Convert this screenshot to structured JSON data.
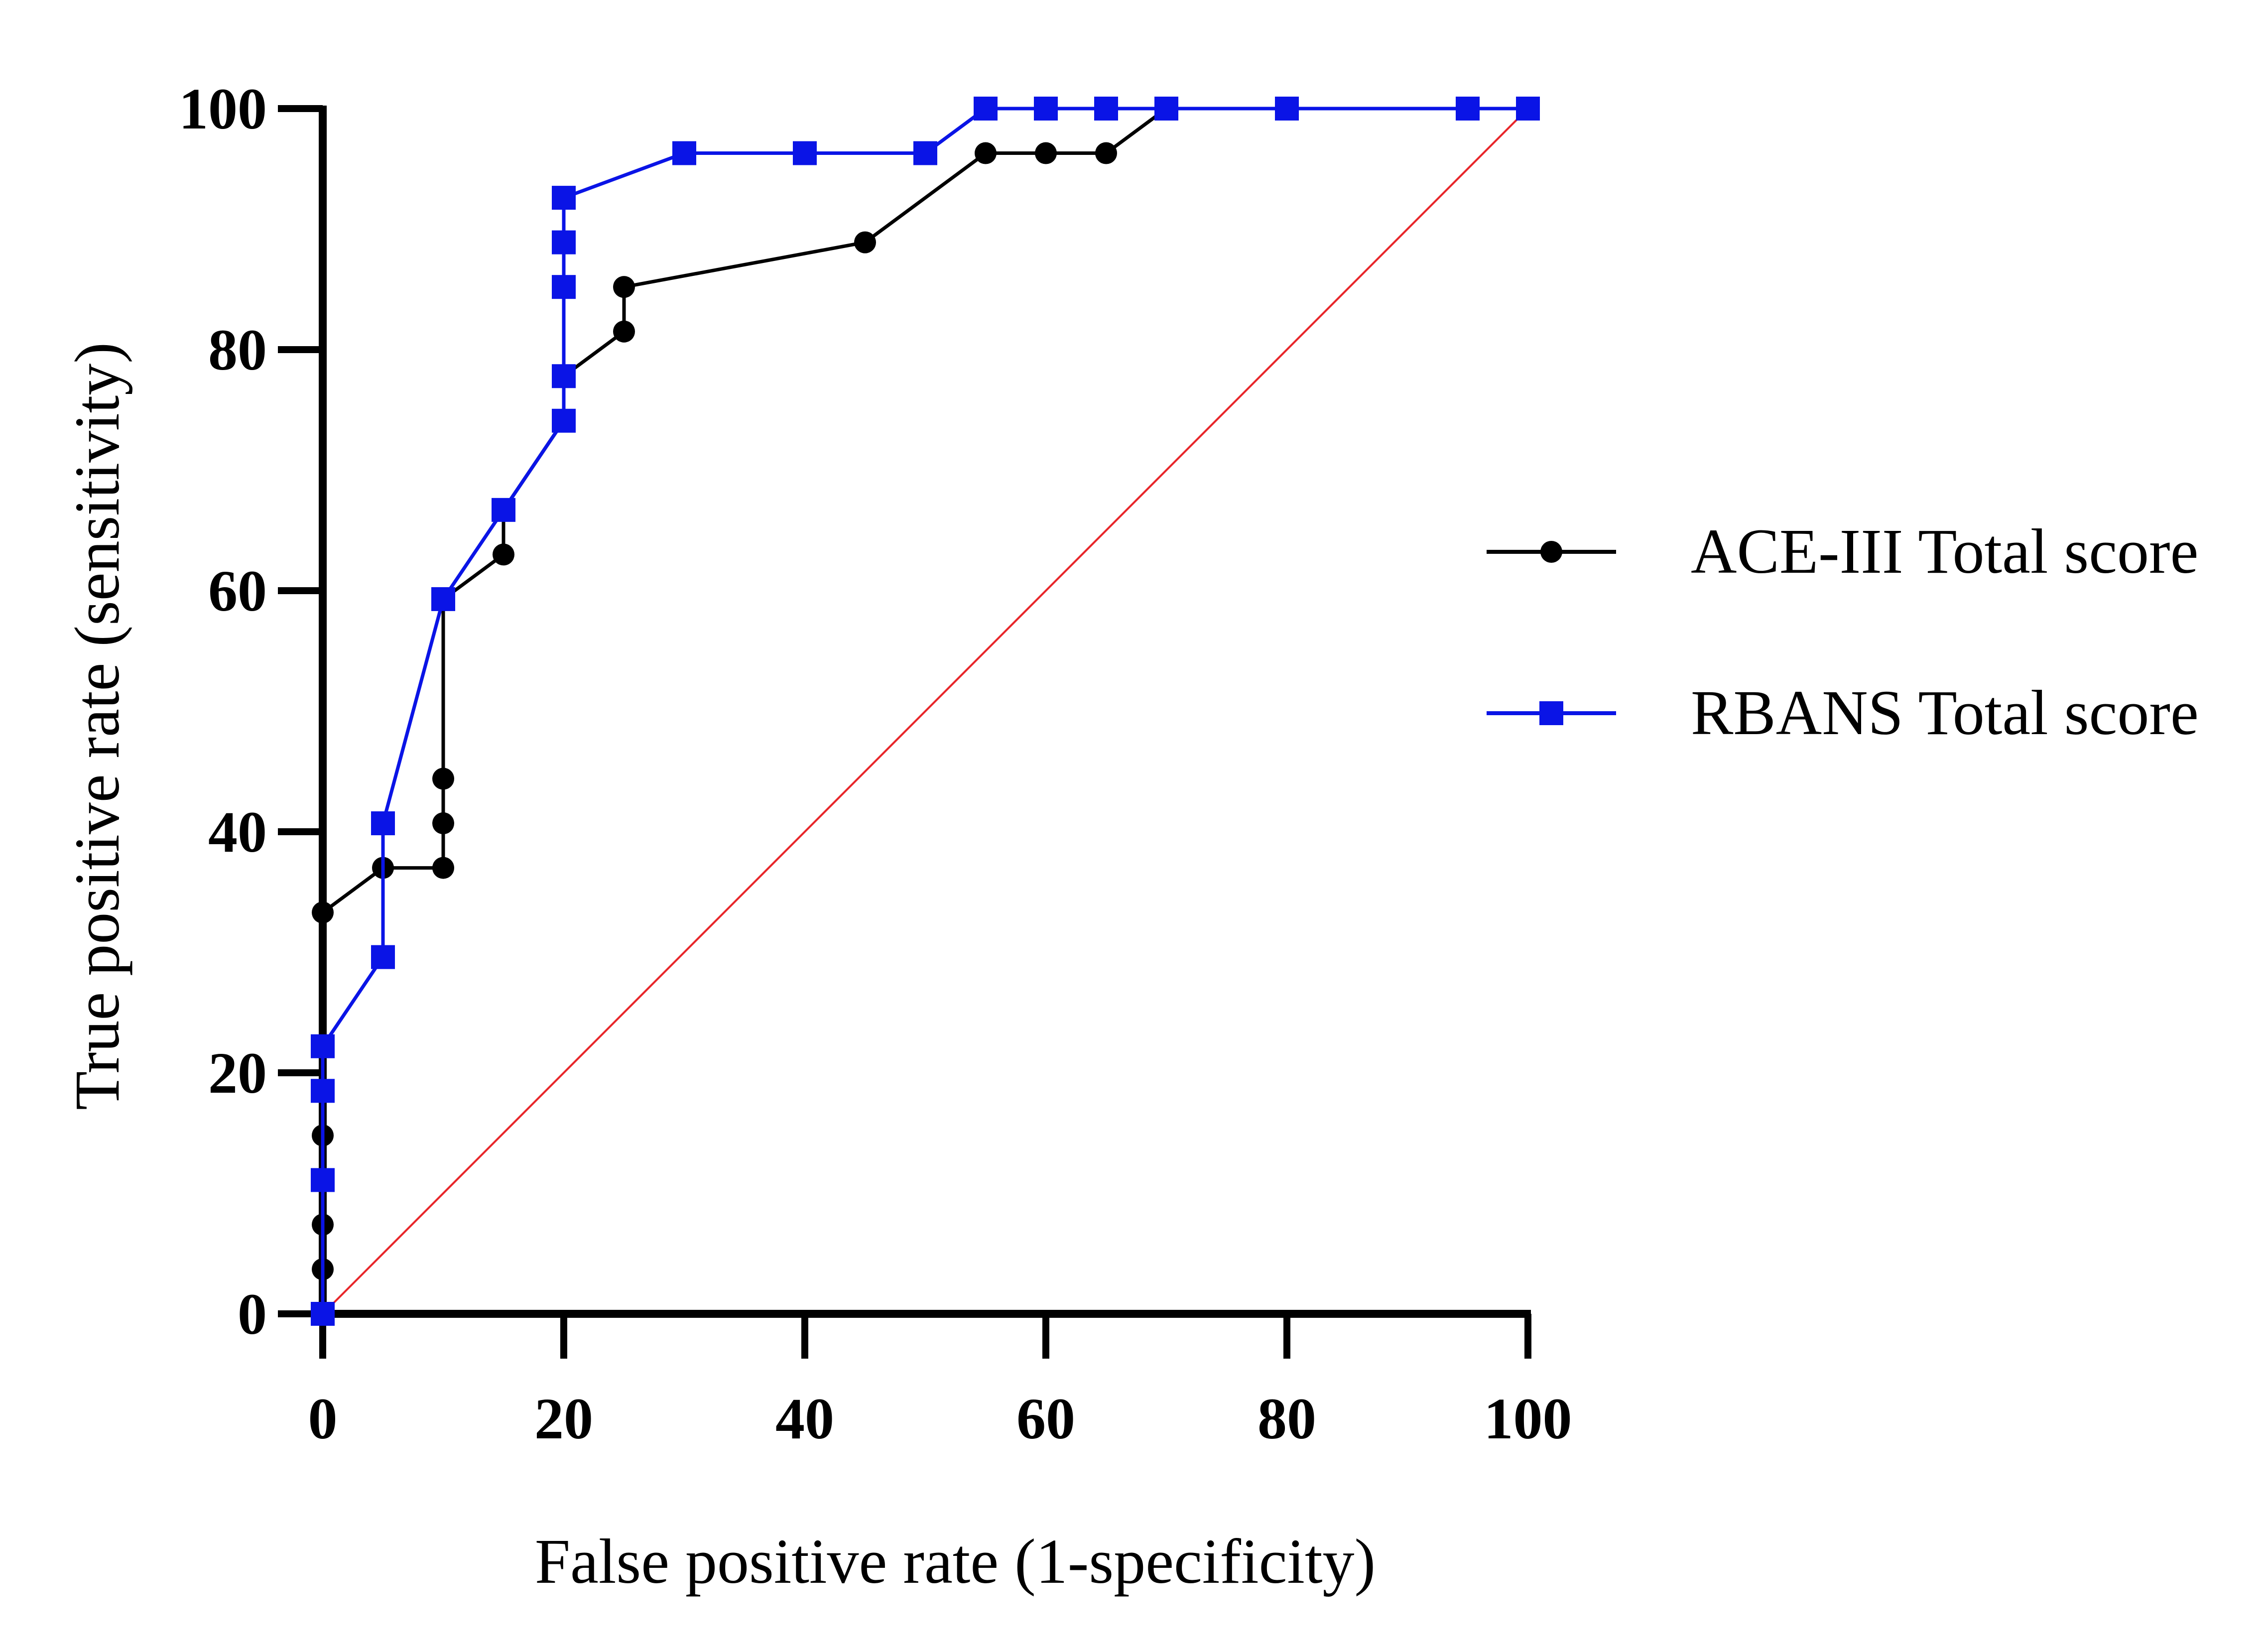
{
  "chart_data": {
    "type": "line",
    "title": "",
    "xlabel": "False positive rate (1-specificity)",
    "ylabel": "True positive rate (sensitivity)",
    "xlim": [
      0,
      100
    ],
    "ylim": [
      0,
      100
    ],
    "xticks": [
      0,
      20,
      40,
      60,
      80,
      100
    ],
    "yticks": [
      0,
      20,
      40,
      60,
      80,
      100
    ],
    "grid": false,
    "legend_position": "right",
    "reference_line": {
      "x": [
        0,
        100
      ],
      "y": [
        0,
        100
      ],
      "color": "#e8262a"
    },
    "series": [
      {
        "name": "ACE-III Total score",
        "color": "#000000",
        "marker": "circle",
        "x": [
          0,
          0,
          0,
          0,
          0,
          5,
          10,
          10,
          10,
          10,
          15,
          15,
          20,
          20,
          25,
          25,
          45,
          55,
          60,
          65,
          70,
          100
        ],
        "y": [
          0,
          3.7,
          7.4,
          14.8,
          33.3,
          37.0,
          37.0,
          40.7,
          44.4,
          59.3,
          63.0,
          66.7,
          74.1,
          77.8,
          81.5,
          85.2,
          88.9,
          96.3,
          96.3,
          96.3,
          100,
          100
        ]
      },
      {
        "name": "RBANS Total score",
        "color": "#0a14e6",
        "marker": "square",
        "x": [
          0,
          0,
          0,
          0,
          5,
          5,
          10,
          15,
          20,
          20,
          20,
          20,
          20,
          30,
          40,
          50,
          55,
          60,
          65,
          70,
          80,
          95,
          100
        ],
        "y": [
          0,
          11.1,
          18.5,
          22.2,
          29.6,
          40.7,
          59.3,
          66.7,
          74.1,
          77.8,
          85.2,
          88.9,
          92.6,
          96.3,
          96.3,
          96.3,
          100,
          100,
          100,
          100,
          100,
          100,
          100
        ]
      }
    ]
  }
}
